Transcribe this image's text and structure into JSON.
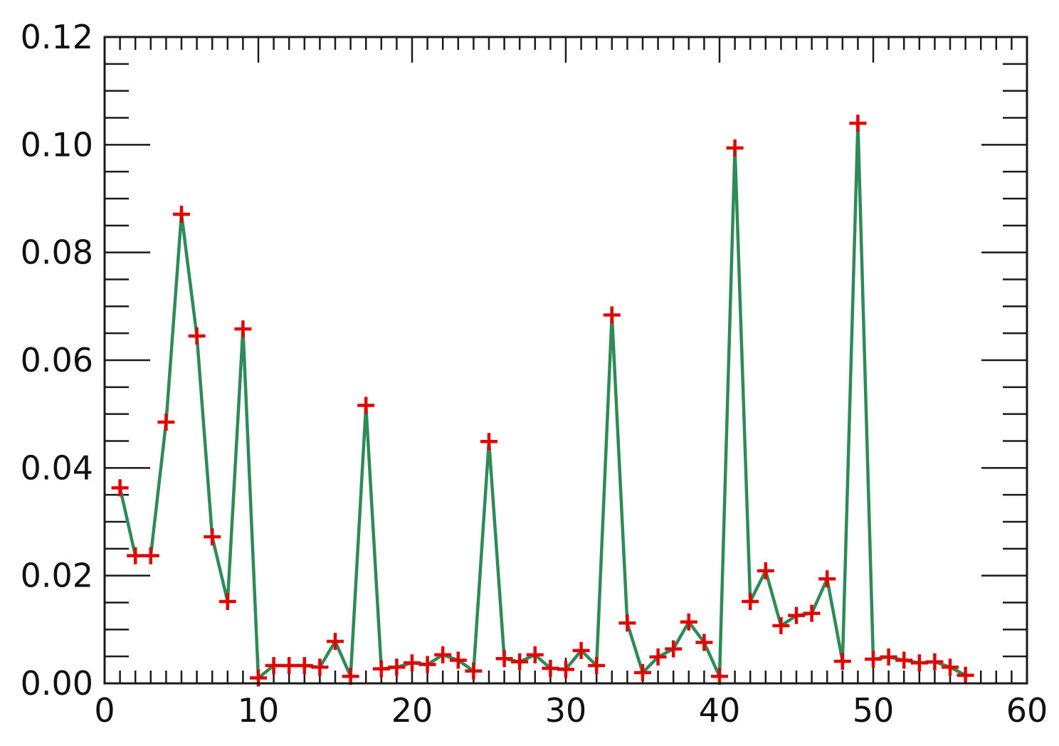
{
  "chart_data": {
    "type": "line",
    "title": "",
    "xlabel": "",
    "ylabel": "",
    "xlim": [
      0,
      60
    ],
    "ylim": [
      0,
      0.12
    ],
    "x_ticks": [
      0,
      10,
      20,
      30,
      40,
      50,
      60
    ],
    "x_tick_labels": [
      "0",
      "10",
      "20",
      "30",
      "40",
      "50",
      "60"
    ],
    "x_minor_step": 1,
    "y_ticks": [
      0,
      0.02,
      0.04,
      0.06,
      0.08,
      0.1,
      0.12
    ],
    "y_tick_labels": [
      "0.00",
      "0.02",
      "0.04",
      "0.06",
      "0.08",
      "0.10",
      "0.12"
    ],
    "y_minor_step": 0.005,
    "grid": false,
    "legend": "none",
    "line_color": "#2e8b57",
    "marker_color": "#e30000",
    "marker": "plus",
    "series": [
      {
        "x": [
          1,
          2,
          3,
          4,
          5,
          6,
          7,
          8,
          9,
          10,
          11,
          12,
          13,
          14,
          15,
          16,
          17,
          18,
          19,
          20,
          21,
          22,
          23,
          24,
          25,
          26,
          27,
          28,
          29,
          30,
          31,
          32,
          33,
          34,
          35,
          36,
          37,
          38,
          39,
          40,
          41,
          42,
          43,
          44,
          45,
          46,
          47,
          48,
          49,
          50,
          51,
          52,
          53,
          54,
          55,
          56
        ],
        "values": [
          0.0363,
          0.0237,
          0.0237,
          0.0485,
          0.0871,
          0.0645,
          0.0272,
          0.0152,
          0.0658,
          0.001,
          0.0033,
          0.0033,
          0.0033,
          0.003,
          0.0078,
          0.0013,
          0.0516,
          0.0027,
          0.003,
          0.0038,
          0.0035,
          0.0053,
          0.0043,
          0.0023,
          0.0449,
          0.0046,
          0.004,
          0.0053,
          0.0028,
          0.0026,
          0.0061,
          0.0033,
          0.0684,
          0.0112,
          0.002,
          0.0049,
          0.0064,
          0.0114,
          0.0076,
          0.0013,
          0.0994,
          0.0152,
          0.0209,
          0.0107,
          0.0126,
          0.013,
          0.0194,
          0.0041,
          0.104,
          0.0045,
          0.0049,
          0.0043,
          0.0038,
          0.004,
          0.003,
          0.0015
        ]
      }
    ]
  }
}
